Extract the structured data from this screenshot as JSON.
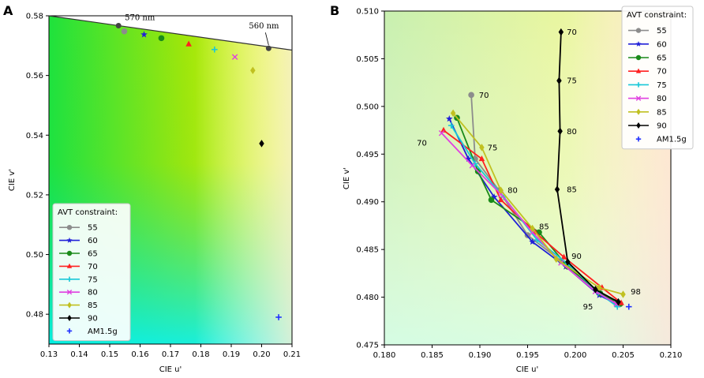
{
  "chart_data": [
    {
      "panel": "A",
      "type": "scatter",
      "xlabel": "CIE u'",
      "ylabel": "CIE v'",
      "xlim": [
        0.13,
        0.21
      ],
      "ylim": [
        0.47,
        0.58
      ],
      "xticks": [
        0.13,
        0.14,
        0.15,
        0.16,
        0.17,
        0.18,
        0.19,
        0.2,
        0.21
      ],
      "yticks": [
        0.48,
        0.5,
        0.52,
        0.54,
        0.56,
        0.58
      ],
      "xtick_labels": [
        "0.13",
        "0.14",
        "0.15",
        "0.16",
        "0.17",
        "0.18",
        "0.19",
        "0.20",
        "0.21"
      ],
      "ytick_labels": [
        "0.48",
        "0.50",
        "0.52",
        "0.54",
        "0.56",
        "0.58"
      ],
      "legend_title": "AVT constraint:",
      "legend_position": "lower-left",
      "locus": {
        "x": [
          0.13,
          0.21
        ],
        "y": [
          0.58,
          0.5685
        ]
      },
      "locus_points": [
        {
          "x": 0.1529,
          "y": 0.5767,
          "label": "570 nm"
        },
        {
          "x": 0.2023,
          "y": 0.5691,
          "label": "560 nm"
        }
      ],
      "series": [
        {
          "name": "55",
          "color": "#8c8c8c",
          "marker": "circle",
          "x": [
            0.1548
          ],
          "y": [
            0.5748
          ]
        },
        {
          "name": "60",
          "color": "#2020d8",
          "marker": "star",
          "x": [
            0.1613
          ],
          "y": [
            0.5737
          ]
        },
        {
          "name": "65",
          "color": "#1a8a1a",
          "marker": "circle",
          "x": [
            0.167
          ],
          "y": [
            0.5725
          ]
        },
        {
          "name": "70",
          "color": "#ff2020",
          "marker": "triangle",
          "x": [
            0.176
          ],
          "y": [
            0.5705
          ]
        },
        {
          "name": "75",
          "color": "#18c8d8",
          "marker": "plus",
          "x": [
            0.1845
          ],
          "y": [
            0.5687
          ]
        },
        {
          "name": "80",
          "color": "#e040e0",
          "marker": "x",
          "x": [
            0.1912
          ],
          "y": [
            0.5662
          ]
        },
        {
          "name": "85",
          "color": "#c0c020",
          "marker": "diamond",
          "x": [
            0.1971
          ],
          "y": [
            0.5617
          ]
        },
        {
          "name": "90",
          "color": "#000000",
          "marker": "diamond",
          "x": [
            0.2
          ],
          "y": [
            0.5372
          ]
        },
        {
          "name": "AM1.5g",
          "color": "#2030ff",
          "marker": "plus",
          "line": false,
          "x": [
            0.2056
          ],
          "y": [
            0.479
          ]
        }
      ]
    },
    {
      "panel": "B",
      "type": "line",
      "xlabel": "CIE u'",
      "ylabel": "CIE v'",
      "xlim": [
        0.18,
        0.21
      ],
      "ylim": [
        0.475,
        0.51
      ],
      "xticks": [
        0.18,
        0.185,
        0.19,
        0.195,
        0.2,
        0.205,
        0.21
      ],
      "yticks": [
        0.475,
        0.48,
        0.485,
        0.49,
        0.495,
        0.5,
        0.505,
        0.51
      ],
      "xtick_labels": [
        "0.180",
        "0.185",
        "0.190",
        "0.195",
        "0.200",
        "0.205",
        "0.210"
      ],
      "ytick_labels": [
        "0.475",
        "0.480",
        "0.485",
        "0.490",
        "0.495",
        "0.500",
        "0.505",
        "0.510"
      ],
      "legend_title": "AVT constraint:",
      "legend_position": "top-right",
      "series": [
        {
          "name": "55",
          "color": "#8c8c8c",
          "marker": "circle",
          "x": [
            0.1891,
            0.1895,
            0.192,
            0.195,
            0.1985,
            0.2022,
            0.2042
          ],
          "y": [
            0.5012,
            0.4945,
            0.4912,
            0.4865,
            0.4838,
            0.4808,
            0.4795
          ]
        },
        {
          "name": "60",
          "color": "#2020d8",
          "marker": "star",
          "x": [
            0.1868,
            0.1888,
            0.1915,
            0.1955,
            0.199,
            0.2025,
            0.2045
          ],
          "y": [
            0.4987,
            0.4945,
            0.4905,
            0.4858,
            0.4832,
            0.4802,
            0.4792
          ]
        },
        {
          "name": "65",
          "color": "#1a8a1a",
          "marker": "circle",
          "x": [
            0.1876,
            0.1898,
            0.1912,
            0.1962,
            0.1992,
            0.2026,
            0.2047
          ],
          "y": [
            0.4988,
            0.4932,
            0.4902,
            0.4868,
            0.4832,
            0.4804,
            0.4793
          ]
        },
        {
          "name": "70",
          "color": "#ff2020",
          "marker": "triangle",
          "x": [
            0.1862,
            0.1902,
            0.1922,
            0.1958,
            0.1988,
            0.2028,
            0.2048
          ],
          "y": [
            0.4975,
            0.4945,
            0.4902,
            0.4868,
            0.4842,
            0.481,
            0.4794
          ]
        },
        {
          "name": "75",
          "color": "#18c8d8",
          "marker": "plus",
          "x": [
            0.187,
            0.1895,
            0.1925,
            0.196,
            0.1992,
            0.2024,
            0.2044
          ],
          "y": [
            0.498,
            0.494,
            0.4905,
            0.486,
            0.4835,
            0.4805,
            0.479
          ]
        },
        {
          "name": "80",
          "color": "#e040e0",
          "marker": "x",
          "x": [
            0.186,
            0.1892,
            0.1922,
            0.1955,
            0.1985,
            0.2021,
            0.2043
          ],
          "y": [
            0.4972,
            0.4938,
            0.4908,
            0.4868,
            0.4836,
            0.4806,
            0.4793
          ]
        },
        {
          "name": "85",
          "color": "#c0c020",
          "marker": "diamond",
          "x": [
            0.1872,
            0.1902,
            0.1922,
            0.1955,
            0.198,
            0.2025,
            0.205
          ],
          "y": [
            0.4993,
            0.4957,
            0.4912,
            0.4872,
            0.484,
            0.481,
            0.4803
          ]
        },
        {
          "name": "90",
          "color": "#000000",
          "marker": "diamond",
          "x": [
            0.1985,
            0.1983,
            0.1984,
            0.1981,
            0.1992,
            0.2021,
            0.2045
          ],
          "y": [
            0.5078,
            0.5027,
            0.4974,
            0.4913,
            0.4837,
            0.4808,
            0.4795
          ]
        },
        {
          "name": "AM1.5g",
          "color": "#2030ff",
          "marker": "plus",
          "line": false,
          "x": [
            0.2056
          ],
          "y": [
            0.479
          ]
        }
      ],
      "annotations": [
        {
          "text": "70",
          "x": 0.1899,
          "y": 0.5012
        },
        {
          "text": "70",
          "x": 0.1834,
          "y": 0.4962
        },
        {
          "text": "75",
          "x": 0.1908,
          "y": 0.4957
        },
        {
          "text": "80",
          "x": 0.1929,
          "y": 0.4912
        },
        {
          "text": "85",
          "x": 0.1962,
          "y": 0.4874
        },
        {
          "text": "90",
          "x": 0.1996,
          "y": 0.4843
        },
        {
          "text": "95",
          "x": 0.2008,
          "y": 0.479
        },
        {
          "text": "98",
          "x": 0.2058,
          "y": 0.4806
        },
        {
          "text": "70",
          "x": 0.1991,
          "y": 0.5078
        },
        {
          "text": "75",
          "x": 0.1991,
          "y": 0.5027
        },
        {
          "text": "80",
          "x": 0.1991,
          "y": 0.4974
        },
        {
          "text": "85",
          "x": 0.1991,
          "y": 0.4913
        }
      ]
    }
  ]
}
